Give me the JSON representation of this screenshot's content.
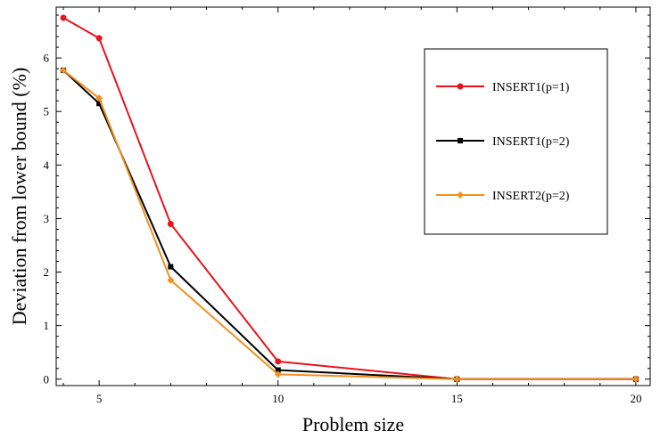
{
  "chart_data": {
    "type": "line",
    "xlabel": "Problem size",
    "ylabel": "Deviation from lower bound (%)",
    "xlim": [
      3.8,
      20.4
    ],
    "ylim": [
      -0.12,
      6.95
    ],
    "x_ticks": [
      5,
      10,
      15,
      20
    ],
    "y_ticks": [
      0,
      1,
      2,
      3,
      4,
      5,
      6
    ],
    "grid": false,
    "legend_position": "top-right",
    "series": [
      {
        "name": "INSERT1(p=1)",
        "color": "#e8141c",
        "marker": "circle",
        "x": [
          4,
          5,
          7,
          10,
          15,
          20
        ],
        "y": [
          6.75,
          6.37,
          2.9,
          0.33,
          0.0,
          0.0
        ]
      },
      {
        "name": "INSERT1(p=2)",
        "color": "#000000",
        "marker": "square",
        "x": [
          4,
          5,
          7,
          10,
          15,
          20
        ],
        "y": [
          5.77,
          5.15,
          2.1,
          0.17,
          0.0,
          0.0
        ]
      },
      {
        "name": "INSERT2(p=2)",
        "color": "#f0901e",
        "marker": "diamond",
        "x": [
          4,
          5,
          7,
          10,
          15,
          20
        ],
        "y": [
          5.77,
          5.25,
          1.85,
          0.09,
          0.0,
          0.0
        ]
      }
    ]
  }
}
